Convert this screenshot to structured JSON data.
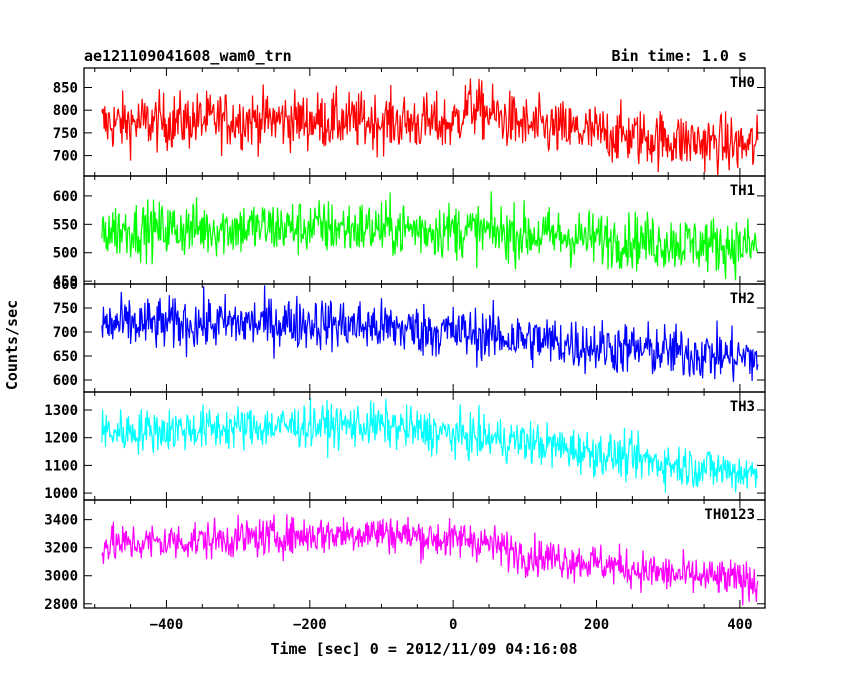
{
  "header": {
    "object": "ae121109041608_wam0_trn",
    "bin_time": "Bin time: 1.0 s"
  },
  "chart_data": {
    "type": "line",
    "xlabel": "Time [sec] 0 = 2012/11/09 04:16:08",
    "ylabel": "Counts/sec",
    "xlim": [
      -515,
      435
    ],
    "x_ticks": [
      "−400",
      "−200",
      "0",
      "200",
      "400"
    ],
    "x_tick_values": [
      -400,
      -200,
      0,
      200,
      400
    ],
    "x_range": [
      -490,
      425
    ],
    "bin_time": 1.0,
    "grid": false,
    "panels": [
      {
        "name": "TH0",
        "color": "#ff0000",
        "ylim": [
          655,
          893
        ],
        "y_ticks": [
          700,
          750,
          800,
          850
        ],
        "y_tick_labels": [
          "700",
          "750",
          "800",
          "850"
        ],
        "trend_x": [
          -490,
          -300,
          -100,
          0,
          20,
          100,
          300,
          425
        ],
        "trend_y": [
          770,
          780,
          775,
          770,
          810,
          765,
          735,
          720
        ],
        "noise": 32
      },
      {
        "name": "TH1",
        "color": "#00ff00",
        "ylim": [
          445,
          635
        ],
        "y_ticks": [
          450,
          500,
          550,
          600
        ],
        "y_tick_labels": [
          "450",
          "500",
          "550",
          "600"
        ],
        "trend_x": [
          -490,
          -200,
          0,
          200,
          425
        ],
        "trend_y": [
          540,
          545,
          540,
          525,
          510
        ],
        "noise": 25
      },
      {
        "name": "TH2",
        "color": "#0000ff",
        "ylim": [
          575,
          800
        ],
        "y_ticks": [
          600,
          650,
          700,
          750,
          800
        ],
        "y_tick_labels": [
          "600",
          "650",
          "700",
          "750",
          "800"
        ],
        "trend_x": [
          -490,
          -200,
          0,
          200,
          425
        ],
        "trend_y": [
          715,
          720,
          700,
          670,
          645
        ],
        "noise": 28
      },
      {
        "name": "TH3",
        "color": "#00ffff",
        "ylim": [
          975,
          1365
        ],
        "y_ticks": [
          1000,
          1100,
          1200,
          1300
        ],
        "y_tick_labels": [
          "1000",
          "1100",
          "1200",
          "1300"
        ],
        "trend_x": [
          -490,
          -200,
          -100,
          0,
          100,
          200,
          300,
          425
        ],
        "trend_y": [
          1220,
          1245,
          1245,
          1210,
          1185,
          1145,
          1105,
          1070
        ],
        "noise": 40
      },
      {
        "name": "TH0123",
        "color": "#ff00ff",
        "ylim": [
          2770,
          3540
        ],
        "y_ticks": [
          2800,
          3000,
          3200,
          3400
        ],
        "y_tick_labels": [
          "2800",
          "3000",
          "3200",
          "3400"
        ],
        "trend_x": [
          -490,
          -200,
          -100,
          0,
          20,
          100,
          200,
          300,
          425
        ],
        "trend_y": [
          3220,
          3290,
          3310,
          3250,
          3270,
          3150,
          3090,
          3010,
          2960
        ],
        "noise": 70
      }
    ]
  }
}
